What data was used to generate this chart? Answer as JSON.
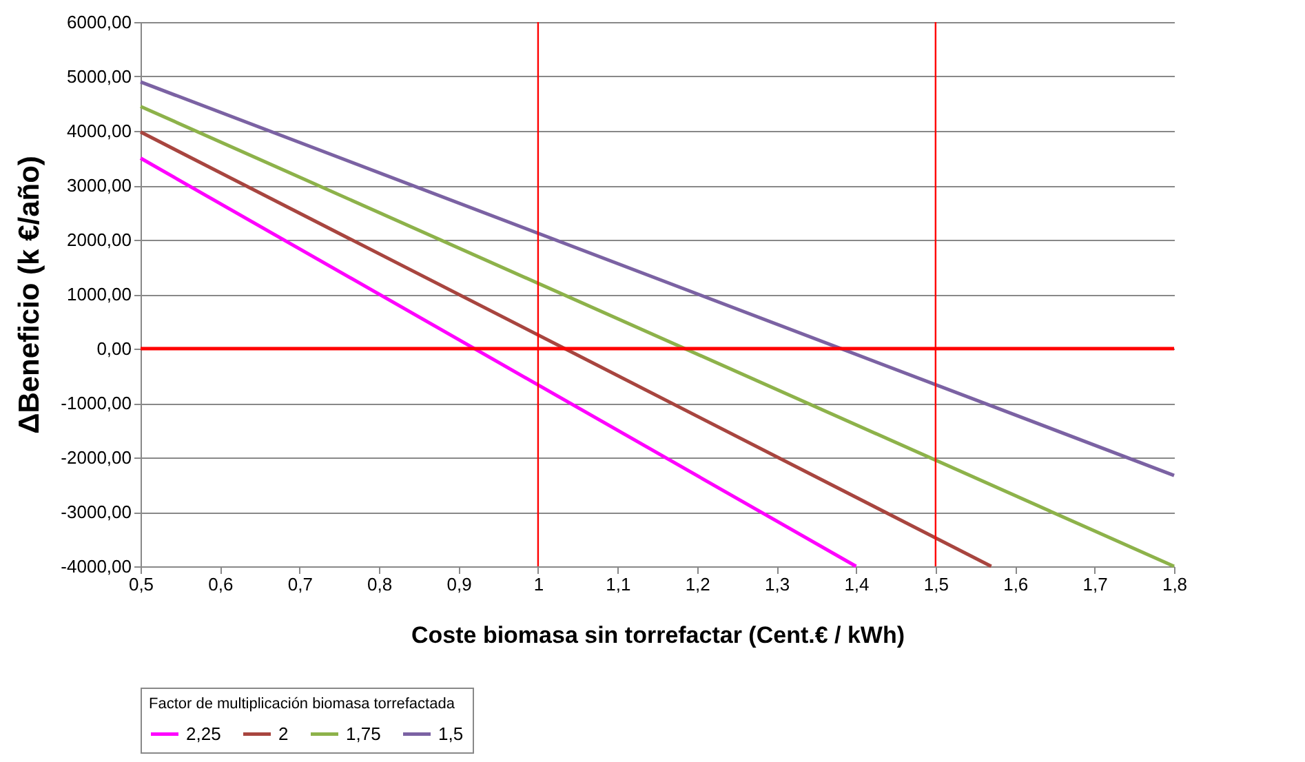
{
  "chart_data": {
    "type": "line",
    "xlabel": "Coste biomasa sin torrefactar (Cent.€ / kWh)",
    "ylabel": "ΔBeneficio (k €/año)",
    "legend_title": "Factor de multiplicación biomasa torrefactada",
    "series": [
      {
        "name": "2,25",
        "color": "#ff00ff",
        "x": [
          0.5,
          1.4
        ],
        "values": [
          3500,
          -4000
        ]
      },
      {
        "name": "2",
        "color": "#a8453f",
        "x": [
          0.5,
          1.57
        ],
        "values": [
          3980,
          -4000
        ]
      },
      {
        "name": "1,75",
        "color": "#8db24a",
        "x": [
          0.5,
          1.8
        ],
        "values": [
          4450,
          -4000
        ]
      },
      {
        "name": "1,5",
        "color": "#7b62a3",
        "x": [
          0.5,
          1.8
        ],
        "values": [
          4900,
          -2330
        ]
      }
    ],
    "xlim": [
      0.5,
      1.8
    ],
    "ylim": [
      -4000,
      6000
    ],
    "xticks": [
      {
        "value": 0.5,
        "label": "0,5"
      },
      {
        "value": 0.6,
        "label": "0,6"
      },
      {
        "value": 0.7,
        "label": "0,7"
      },
      {
        "value": 0.8,
        "label": "0,8"
      },
      {
        "value": 0.9,
        "label": "0,9"
      },
      1,
      {
        "value": 1.1,
        "label": "1,1"
      },
      {
        "value": 1.2,
        "label": "1,2"
      },
      {
        "value": 1.3,
        "label": "1,3"
      },
      {
        "value": 1.4,
        "label": "1,4"
      },
      {
        "value": 1.5,
        "label": "1,5"
      },
      {
        "value": 1.6,
        "label": "1,6"
      },
      {
        "value": 1.7,
        "label": "1,7"
      },
      {
        "value": 1.8,
        "label": "1,8"
      }
    ],
    "yticks": [
      {
        "value": -4000,
        "label": "-4000,00"
      },
      {
        "value": -3000,
        "label": "-3000,00"
      },
      {
        "value": -2000,
        "label": "-2000,00"
      },
      {
        "value": -1000,
        "label": "-1000,00"
      },
      {
        "value": 0,
        "label": "0,00"
      },
      {
        "value": 1000,
        "label": "1000,00"
      },
      {
        "value": 2000,
        "label": "2000,00"
      },
      {
        "value": 3000,
        "label": "3000,00"
      },
      {
        "value": 4000,
        "label": "4000,00"
      },
      {
        "value": 5000,
        "label": "5000,00"
      },
      {
        "value": 6000,
        "label": "6000,00"
      }
    ],
    "ref_lines": [
      {
        "axis": "x",
        "value": 1,
        "color": "#ff0000"
      },
      {
        "axis": "x",
        "value": 1.5,
        "color": "#ff0000"
      },
      {
        "axis": "y",
        "value": 0,
        "color": "#ff0000"
      }
    ],
    "grid": "y",
    "legend": "bottom left",
    "marker": "none",
    "line_style": "solid"
  }
}
